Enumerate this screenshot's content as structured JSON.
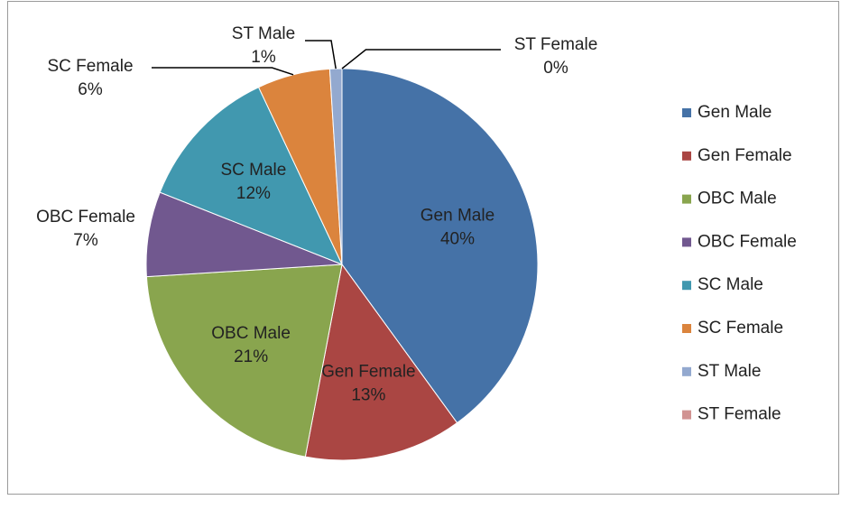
{
  "chart_data": {
    "type": "pie",
    "categories": [
      "Gen Male",
      "Gen Female",
      "OBC Male",
      "OBC Female",
      "SC Male",
      "SC Female",
      "ST Male",
      "ST Female"
    ],
    "values": [
      40,
      13,
      21,
      7,
      12,
      6,
      1,
      0
    ],
    "value_labels": [
      "40%",
      "13%",
      "21%",
      "7%",
      "12%",
      "6%",
      "1%",
      "0%"
    ],
    "colors": [
      "#4572a7",
      "#aa4643",
      "#89a54e",
      "#71588f",
      "#4198af",
      "#db843d",
      "#93a9cf",
      "#d19392"
    ],
    "legend": "right"
  }
}
